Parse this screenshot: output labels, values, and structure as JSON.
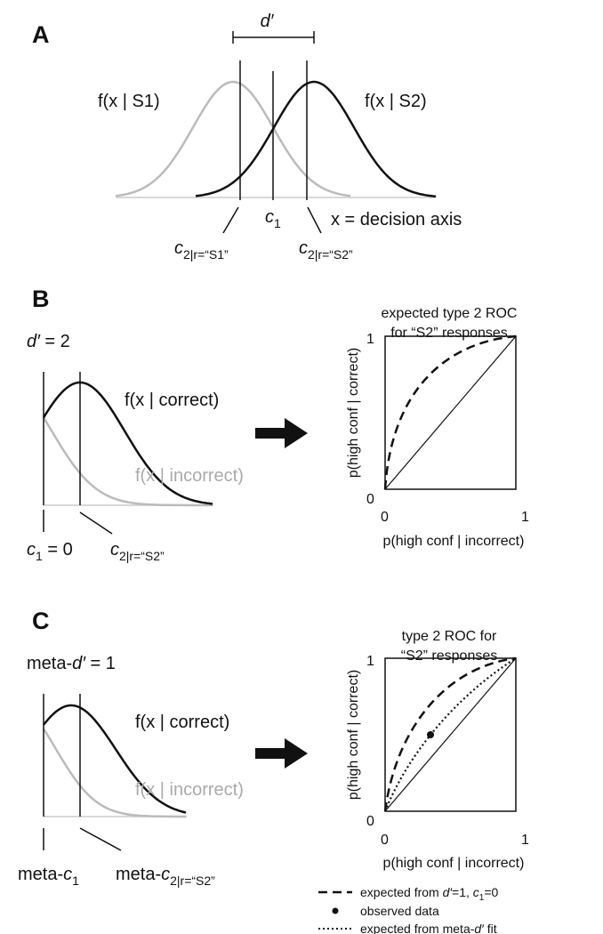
{
  "panel_a": {
    "letter": "A",
    "dprime": "d′",
    "s1_label": "f(x | S1)",
    "s2_label": "f(x | S2)",
    "c1": {
      "main": "c",
      "sub": "1"
    },
    "axis_label": "x = decision axis",
    "c2_s1": {
      "main": "c",
      "sub": "2|r=“S1”"
    },
    "c2_s2": {
      "main": "c",
      "sub": "2|r=“S2”"
    }
  },
  "panel_b": {
    "letter": "B",
    "param": {
      "main": "d′",
      "rest": " = 2"
    },
    "correct_label": "f(x | correct)",
    "incorrect_label": "f(x | incorrect)",
    "c1": {
      "main": "c",
      "sub": "1",
      "rest": " = 0"
    },
    "c2": {
      "main": "c",
      "sub": "2|r=“S2”"
    },
    "roc": {
      "title": [
        "expected type 2 ROC",
        "for “S2” responses"
      ],
      "ylabel": "p(high conf | correct)",
      "xlabel": "p(high conf | incorrect)",
      "x0": "0",
      "x1": "1",
      "y0": "0",
      "y1": "1"
    }
  },
  "panel_c": {
    "letter": "C",
    "param": {
      "prefix": "meta-",
      "main": "d′",
      "rest": " = 1"
    },
    "correct_label": "f(x | correct)",
    "incorrect_label": "f(x | incorrect)",
    "c1": {
      "prefix": "meta-",
      "main": "c",
      "sub": "1"
    },
    "c2": {
      "prefix": "meta-",
      "main": "c",
      "sub": "2|r=“S2”"
    },
    "roc": {
      "title": [
        "type 2 ROC for",
        "“S2” responses"
      ],
      "ylabel": "p(high conf | correct)",
      "xlabel": "p(high conf | incorrect)",
      "x0": "0",
      "x1": "1",
      "y0": "0",
      "y1": "1"
    },
    "legend": [
      {
        "parts": [
          "expected from ",
          "d′",
          "=1, ",
          "c",
          "1",
          "=0"
        ]
      },
      {
        "parts": [
          "observed data"
        ]
      },
      {
        "parts": [
          "expected from meta-",
          "d′",
          " fit"
        ]
      }
    ]
  }
}
